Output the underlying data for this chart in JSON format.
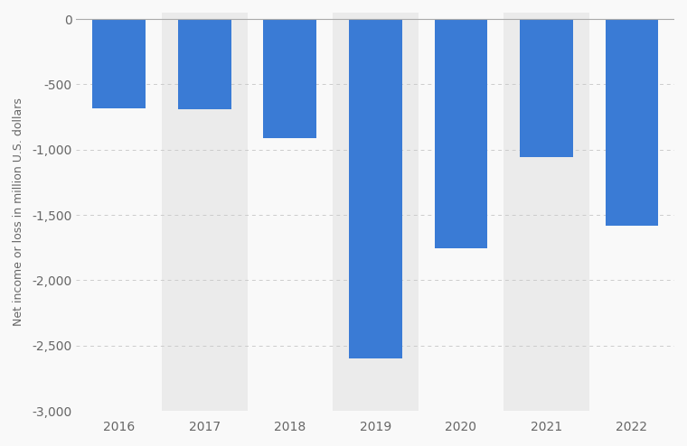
{
  "years": [
    2016,
    2017,
    2018,
    2019,
    2020,
    2021,
    2022
  ],
  "values": [
    -682,
    -688,
    -911,
    -2602,
    -1752,
    -1059,
    -1584
  ],
  "bar_color": "#3a7bd5",
  "background_color": "#f9f9f9",
  "stripe_color": "#ebebeb",
  "ylabel": "Net income or loss in million U.S. dollars",
  "ylim": [
    -3000,
    50
  ],
  "yticks": [
    0,
    -500,
    -1000,
    -1500,
    -2000,
    -2500,
    -3000
  ],
  "grid_color": "#cccccc",
  "bar_width": 0.62,
  "tick_label_color": "#666666",
  "axis_label_color": "#666666",
  "top_line_color": "#aaaaaa"
}
